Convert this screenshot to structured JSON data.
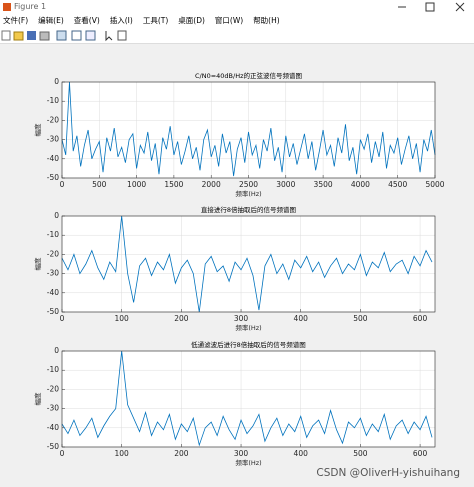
{
  "window": {
    "title": "Figure 1",
    "menu": [
      "文件(F)",
      "编辑(E)",
      "查看(V)",
      "插入(I)",
      "工具(T)",
      "桌面(D)",
      "窗口(W)",
      "帮助(H)"
    ]
  },
  "watermark": "CSDN @OliverH-yishuihang",
  "chart_data": [
    {
      "type": "line",
      "title": "C/N0=40dB/Hz的正弦波信号频谱图",
      "xlabel": "频率(Hz)",
      "ylabel": "幅度",
      "color": "#0072bd",
      "grid": true,
      "xlim": [
        0,
        5000
      ],
      "ylim": [
        -50,
        0
      ],
      "xticks": [
        0,
        500,
        1000,
        1500,
        2000,
        2500,
        3000,
        3500,
        4000,
        4500,
        5000
      ],
      "yticks": [
        -50,
        -40,
        -30,
        -20,
        -10,
        0
      ],
      "x": [
        0,
        50,
        100,
        150,
        200,
        250,
        300,
        350,
        400,
        450,
        500,
        550,
        600,
        650,
        700,
        750,
        800,
        850,
        900,
        950,
        1000,
        1050,
        1100,
        1150,
        1200,
        1250,
        1300,
        1350,
        1400,
        1450,
        1500,
        1550,
        1600,
        1650,
        1700,
        1750,
        1800,
        1850,
        1900,
        1950,
        2000,
        2050,
        2100,
        2150,
        2200,
        2250,
        2300,
        2350,
        2400,
        2450,
        2500,
        2550,
        2600,
        2650,
        2700,
        2750,
        2800,
        2850,
        2900,
        2950,
        3000,
        3050,
        3100,
        3150,
        3200,
        3250,
        3300,
        3350,
        3400,
        3450,
        3500,
        3550,
        3600,
        3650,
        3700,
        3750,
        3800,
        3850,
        3900,
        3950,
        4000,
        4050,
        4100,
        4150,
        4200,
        4250,
        4300,
        4350,
        4400,
        4450,
        4500,
        4550,
        4600,
        4650,
        4700,
        4750,
        4800,
        4850,
        4900,
        4950,
        5000
      ],
      "values": [
        -30,
        -38,
        0,
        -36,
        -28,
        -44,
        -33,
        -25,
        -40,
        -35,
        -31,
        -47,
        -29,
        -36,
        -24,
        -39,
        -34,
        -42,
        -30,
        -27,
        -45,
        -33,
        -37,
        -26,
        -41,
        -32,
        -48,
        -29,
        -35,
        -23,
        -38,
        -31,
        -43,
        -36,
        -28,
        -40,
        -34,
        -46,
        -30,
        -25,
        -39,
        -33,
        -44,
        -27,
        -37,
        -31,
        -49,
        -35,
        -29,
        -42,
        -26,
        -38,
        -33,
        -45,
        -30,
        -36,
        -24,
        -41,
        -34,
        -47,
        -28,
        -39,
        -32,
        -43,
        -35,
        -27,
        -40,
        -31,
        -46,
        -36,
        -25,
        -38,
        -33,
        -44,
        -29,
        -37,
        -22,
        -41,
        -34,
        -48,
        -30,
        -35,
        -27,
        -42,
        -31,
        -39,
        -26,
        -45,
        -33,
        -37,
        -29,
        -43,
        -35,
        -28,
        -40,
        -32,
        -47,
        -30,
        -36,
        -25,
        -38
      ]
    },
    {
      "type": "line",
      "title": "直接进行8倍抽取后的信号频谱图",
      "xlabel": "频率(Hz)",
      "ylabel": "幅度",
      "color": "#0072bd",
      "grid": true,
      "xlim": [
        0,
        625
      ],
      "ylim": [
        -50,
        0
      ],
      "xticks": [
        0,
        100,
        200,
        300,
        400,
        500,
        600
      ],
      "yticks": [
        -50,
        -40,
        -30,
        -20,
        -10,
        0
      ],
      "x": [
        0,
        10,
        20,
        30,
        40,
        50,
        60,
        70,
        80,
        90,
        100,
        110,
        120,
        130,
        140,
        150,
        160,
        170,
        180,
        190,
        200,
        210,
        220,
        230,
        240,
        250,
        260,
        270,
        280,
        290,
        300,
        310,
        320,
        330,
        340,
        350,
        360,
        370,
        380,
        390,
        400,
        410,
        420,
        430,
        440,
        450,
        460,
        470,
        480,
        490,
        500,
        510,
        520,
        530,
        540,
        550,
        560,
        570,
        580,
        590,
        600,
        610,
        620
      ],
      "values": [
        -22,
        -28,
        -20,
        -30,
        -25,
        -18,
        -27,
        -33,
        -24,
        -29,
        0,
        -30,
        -45,
        -26,
        -22,
        -31,
        -24,
        -28,
        -20,
        -35,
        -27,
        -23,
        -30,
        -50,
        -25,
        -21,
        -29,
        -26,
        -34,
        -24,
        -28,
        -22,
        -31,
        -49,
        -26,
        -20,
        -30,
        -25,
        -33,
        -23,
        -27,
        -21,
        -29,
        -24,
        -32,
        -26,
        -22,
        -30,
        -25,
        -28,
        -20,
        -31,
        -24,
        -27,
        -19,
        -29,
        -25,
        -23,
        -30,
        -21,
        -26,
        -18,
        -24
      ]
    },
    {
      "type": "line",
      "title": "低通滤波后进行8倍抽取后的信号频谱图",
      "xlabel": "频率(Hz)",
      "ylabel": "幅度",
      "color": "#0072bd",
      "grid": true,
      "xlim": [
        0,
        625
      ],
      "ylim": [
        -50,
        0
      ],
      "xticks": [
        0,
        100,
        200,
        300,
        400,
        500,
        600
      ],
      "yticks": [
        -50,
        -40,
        -30,
        -20,
        -10,
        0
      ],
      "x": [
        0,
        10,
        20,
        30,
        40,
        50,
        60,
        70,
        80,
        90,
        100,
        110,
        120,
        130,
        140,
        150,
        160,
        170,
        180,
        190,
        200,
        210,
        220,
        230,
        240,
        250,
        260,
        270,
        280,
        290,
        300,
        310,
        320,
        330,
        340,
        350,
        360,
        370,
        380,
        390,
        400,
        410,
        420,
        430,
        440,
        450,
        460,
        470,
        480,
        490,
        500,
        510,
        520,
        530,
        540,
        550,
        560,
        570,
        580,
        590,
        600,
        610,
        620
      ],
      "values": [
        -38,
        -43,
        -36,
        -44,
        -40,
        -35,
        -45,
        -39,
        -34,
        -30,
        0,
        -28,
        -35,
        -42,
        -32,
        -44,
        -37,
        -41,
        -33,
        -46,
        -38,
        -42,
        -35,
        -49,
        -40,
        -37,
        -44,
        -34,
        -41,
        -46,
        -36,
        -43,
        -39,
        -33,
        -47,
        -40,
        -35,
        -44,
        -38,
        -42,
        -34,
        -45,
        -39,
        -36,
        -43,
        -31,
        -41,
        -48,
        -37,
        -40,
        -35,
        -44,
        -38,
        -42,
        -33,
        -46,
        -39,
        -36,
        -43,
        -37,
        -41,
        -34,
        -45
      ]
    }
  ]
}
